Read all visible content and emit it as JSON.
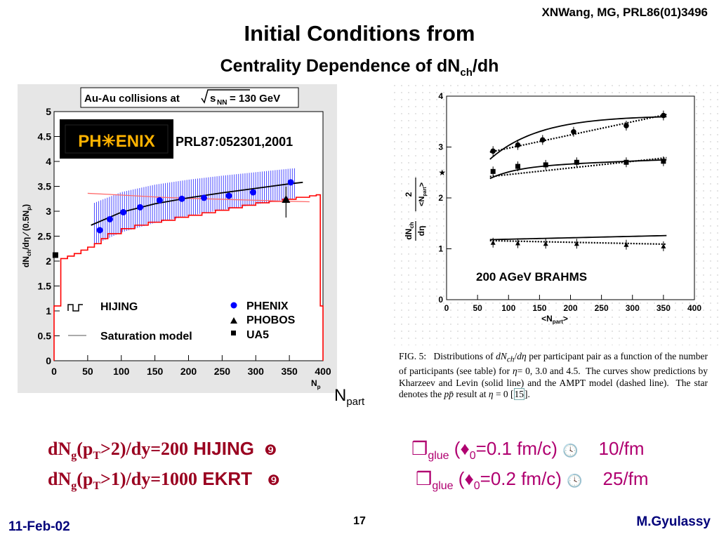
{
  "slide": {
    "reference": "XNWang, MG, PRL86(01)3496",
    "title": "Initial Conditions from",
    "subtitle_main": "Centrality Dependence of dN",
    "subtitle_sub": "ch",
    "subtitle_tail": "/dh",
    "footer_date": "11-Feb-02",
    "footer_page": "17",
    "footer_author": "M.Gyulassy",
    "npart_main": "N",
    "npart_sub": "part"
  },
  "left_chart": {
    "header": "Au-Au collisions at",
    "header_sqrt": "s",
    "header_sub": "NN",
    "header_tail": "= 130 GeV",
    "logo_text": "PH✳ENIX",
    "citation": "PRL87:052301,2001",
    "ylabel": "dN",
    "ylabel_sub": "ch",
    "ylabel_tail": "/dη ⁄ (0.5N",
    "ylabel_sub2": "p",
    "ylabel_end": ")",
    "xlabel": "N",
    "xlabel_sub": "p",
    "legend_hijing": "HIJING",
    "legend_saturation": "Saturation model",
    "legend_phenix": "PHENIX",
    "legend_phobos": "PHOBOS",
    "legend_ua5": "UA5",
    "colors": {
      "frame": "#e8e8e8",
      "hijing": "#ff0000",
      "saturation": "#ff6a6a",
      "phenix": "#0000ff",
      "band": "#4a4aff",
      "fit": "#000000"
    }
  },
  "right_chart": {
    "ylabel_num": "dN",
    "ylabel_num_sub": "ch",
    "ylabel_den": "dη",
    "ylabel_num2": "2",
    "ylabel_den2": "<N",
    "ylabel_den2_sub": "part",
    "ylabel_den2_end": ">",
    "xlabel": "<N",
    "xlabel_sub": "part",
    "xlabel_end": ">",
    "annotation": "200 AGeV BRAHMS",
    "caption_html": "FIG. 5:&nbsp;&nbsp; Distributions of <i>dN<sub>ch</sub></i>/<i>dη</i> per participant pair as a function of the number of participants (see table) for <i>η</i>= 0, 3.0 and 4.5.&nbsp; The curves show predictions by Kharzeev and Levin (solid line) and the AMPT model (dashed line).&nbsp; The star denotes the <i>pp̄</i> result at <i>η</i> = 0 [<span style=\"border:1px solid #7aa\">15</span>]."
  },
  "bottom_rows": [
    {
      "lead": "dN",
      "lead_sub": "g",
      "lead_paren": "(p",
      "lead_paren_sub": "T",
      "lead_cond": ">2)/dy=200",
      "model": "HIJING",
      "mark": "❾",
      "tau_sym": "❒",
      "tau_sub": "glue",
      "tau_text": "(♦",
      "tau_sub0": "0",
      "tau_val": "=0.1 fm/c)",
      "clock": "🕓",
      "tail": "10/fm"
    },
    {
      "lead": "dN",
      "lead_sub": "g",
      "lead_paren": "(p",
      "lead_paren_sub": "T",
      "lead_cond": ">1)/dy=1000",
      "model": "EKRT",
      "mark": "❾",
      "tau_sym": "❒",
      "tau_sub": "glue",
      "tau_text": "(♦",
      "tau_sub0": "0",
      "tau_val": "=0.2 fm/c)",
      "clock": "🕓",
      "tail": "25/fm"
    }
  ],
  "chart_data": [
    {
      "type": "line",
      "title": "Au-Au collisions at √sNN = 130 GeV",
      "xlabel": "Np",
      "ylabel": "dNch/dη / (0.5Np)",
      "xlim": [
        0,
        400
      ],
      "ylim": [
        0,
        5
      ],
      "xticks": [
        0,
        50,
        100,
        150,
        200,
        250,
        300,
        350,
        400
      ],
      "yticks": [
        0,
        0.5,
        1,
        1.5,
        2,
        2.5,
        3,
        3.5,
        4,
        4.5,
        5
      ],
      "legend": "bottom-left",
      "series": [
        {
          "name": "PHENIX",
          "marker": "circle",
          "x": [
            68,
            83,
            103,
            128,
            157,
            190,
            223,
            260,
            296,
            352
          ],
          "y": [
            2.62,
            2.84,
            2.98,
            3.08,
            3.22,
            3.25,
            3.27,
            3.31,
            3.38,
            3.58
          ]
        },
        {
          "name": "PHOBOS",
          "marker": "triangle",
          "x": [
            345
          ],
          "y": [
            3.24
          ]
        },
        {
          "name": "UA5",
          "marker": "square",
          "x": [
            2
          ],
          "y": [
            2.12
          ]
        },
        {
          "name": "HIJING",
          "style": "step",
          "x": [
            0,
            10,
            20,
            30,
            40,
            50,
            60,
            70,
            80,
            100,
            120,
            140,
            160,
            180,
            200,
            220,
            240,
            260,
            280,
            300,
            320,
            340,
            360,
            380,
            390,
            396,
            400
          ],
          "y": [
            1.1,
            2.05,
            2.1,
            2.15,
            2.22,
            2.28,
            2.35,
            2.45,
            2.55,
            2.65,
            2.72,
            2.78,
            2.82,
            2.88,
            2.92,
            2.97,
            3.02,
            3.07,
            3.12,
            3.17,
            3.2,
            3.24,
            3.28,
            3.31,
            3.33,
            1.1,
            0
          ]
        },
        {
          "name": "Saturation model",
          "style": "line",
          "x": [
            50,
            80,
            120,
            160,
            200,
            250,
            300,
            350,
            380
          ],
          "y": [
            3.36,
            3.34,
            3.31,
            3.28,
            3.26,
            3.24,
            3.22,
            3.2,
            3.19
          ]
        },
        {
          "name": "fit",
          "style": "line",
          "x": [
            55,
            100,
            150,
            200,
            250,
            300,
            350,
            370
          ],
          "y": [
            2.72,
            2.98,
            3.15,
            3.27,
            3.37,
            3.46,
            3.55,
            3.58
          ]
        }
      ]
    },
    {
      "type": "line",
      "xlabel": "<Npart>",
      "ylabel": "dNch/dη · 2/<Npart>",
      "xlim": [
        0,
        400
      ],
      "ylim": [
        0,
        4
      ],
      "xticks": [
        0,
        50,
        100,
        150,
        200,
        250,
        300,
        350,
        400
      ],
      "yticks": [
        0,
        1,
        2,
        3,
        4
      ],
      "annotation": "200 AGeV BRAHMS",
      "series": [
        {
          "marker": "circle",
          "eta": "4.5",
          "x": [
            75,
            115,
            155,
            205,
            290,
            350
          ],
          "y": [
            2.92,
            3.04,
            3.14,
            3.3,
            3.42,
            3.62
          ]
        },
        {
          "marker": "square",
          "eta": "3.0",
          "x": [
            75,
            115,
            160,
            210,
            290,
            350
          ],
          "y": [
            2.52,
            2.62,
            2.65,
            2.7,
            2.7,
            2.72
          ]
        },
        {
          "marker": "triangle",
          "eta": "0",
          "x": [
            75,
            115,
            160,
            210,
            290,
            350
          ],
          "y": [
            1.12,
            1.11,
            1.1,
            1.1,
            1.08,
            1.05
          ]
        },
        {
          "marker": "star",
          "eta": "pp",
          "x": [
            2
          ],
          "y": [
            2.5
          ]
        }
      ]
    }
  ]
}
